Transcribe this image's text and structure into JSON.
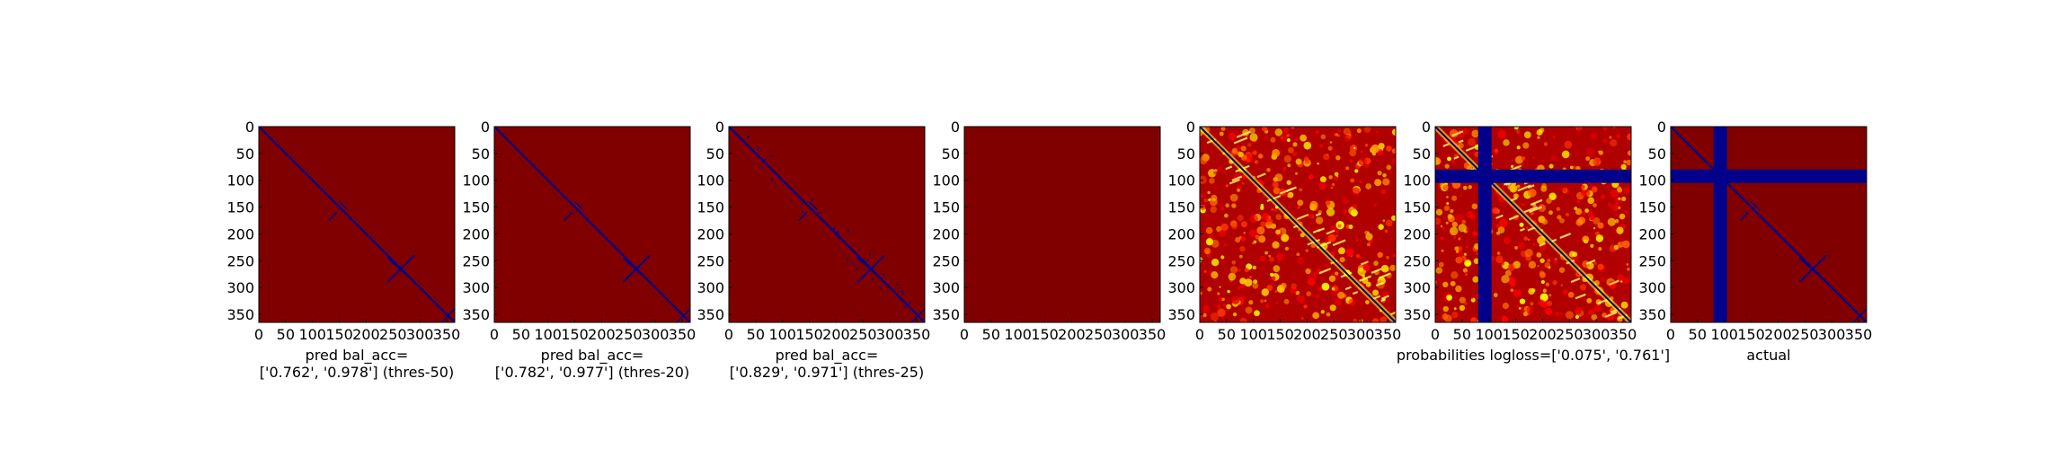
{
  "chart_data": [
    {
      "type": "heatmap",
      "colormap": "jet",
      "xlabel_lines": [
        "pred bal_acc=",
        "['0.762', '0.978'] (thres-50)"
      ],
      "x_ticks": [
        "0",
        "50",
        "100",
        "150",
        "200",
        "250",
        "300",
        "350"
      ],
      "y_ticks": [
        "0",
        "50",
        "100",
        "150",
        "200",
        "250",
        "300",
        "350"
      ],
      "xlim": [
        0,
        365
      ],
      "ylim": [
        365,
        0
      ],
      "matrix_size": 365,
      "dominant_value": 1,
      "structures": [
        "main-diagonal",
        "cross-at-265"
      ],
      "colors": {
        "background": "#800000",
        "contact": "#00008b"
      }
    },
    {
      "type": "heatmap",
      "colormap": "jet",
      "xlabel_lines": [
        "pred bal_acc=",
        "['0.782', '0.977'] (thres-20)"
      ],
      "x_ticks": [
        "0",
        "50",
        "100",
        "150",
        "200",
        "250",
        "300",
        "350"
      ],
      "y_ticks": [
        "0",
        "50",
        "100",
        "150",
        "200",
        "250",
        "300",
        "350"
      ],
      "xlim": [
        0,
        365
      ],
      "ylim": [
        365,
        0
      ],
      "matrix_size": 365,
      "dominant_value": 1,
      "structures": [
        "main-diagonal",
        "cross-at-265"
      ],
      "colors": {
        "background": "#800000",
        "contact": "#00008b"
      }
    },
    {
      "type": "heatmap",
      "colormap": "jet",
      "xlabel_lines": [
        "pred bal_acc=",
        "['0.829', '0.971'] (thres-25)"
      ],
      "x_ticks": [
        "0",
        "50",
        "100",
        "150",
        "200",
        "250",
        "300",
        "350"
      ],
      "y_ticks": [
        "0",
        "50",
        "100",
        "150",
        "200",
        "250",
        "300",
        "350"
      ],
      "xlim": [
        0,
        365
      ],
      "ylim": [
        365,
        0
      ],
      "matrix_size": 365,
      "dominant_value": 1,
      "structures": [
        "main-diagonal",
        "cross-at-265",
        "scattered-contacts"
      ],
      "colors": {
        "background": "#800000",
        "contact": "#00008b"
      }
    },
    {
      "type": "heatmap",
      "colormap": "jet",
      "xlabel_lines": [],
      "x_ticks": [
        "0",
        "50",
        "100",
        "150",
        "200",
        "250",
        "300",
        "350"
      ],
      "y_ticks": [
        "0",
        "50",
        "100",
        "150",
        "200",
        "250",
        "300",
        "350"
      ],
      "xlim": [
        0,
        365
      ],
      "ylim": [
        365,
        0
      ],
      "matrix_size": 365,
      "dominant_value": 1,
      "structures": [],
      "colors": {
        "background": "#800000"
      }
    },
    {
      "type": "heatmap",
      "colormap": "jet",
      "xlabel_lines": [],
      "x_ticks": [
        "0",
        "50",
        "100",
        "150",
        "200",
        "250",
        "300",
        "350"
      ],
      "y_ticks": [
        "0",
        "50",
        "100",
        "150",
        "200",
        "250",
        "300",
        "350"
      ],
      "xlim": [
        0,
        365
      ],
      "ylim": [
        365,
        0
      ],
      "matrix_size": 365,
      "structures": [
        "noisy-probabilities",
        "main-diagonal-low"
      ],
      "colors": {
        "background": "#b00000",
        "low": "#00008b",
        "mid": "#ffff00"
      }
    },
    {
      "type": "heatmap",
      "colormap": "jet",
      "xlabel_lines": [
        "probabilities logloss=['0.075', '0.761']"
      ],
      "x_ticks": [
        "0",
        "50",
        "100",
        "150",
        "200",
        "250",
        "300",
        "350"
      ],
      "y_ticks": [
        "0",
        "50",
        "100",
        "150",
        "200",
        "250",
        "300",
        "350"
      ],
      "xlim": [
        0,
        365
      ],
      "ylim": [
        365,
        0
      ],
      "matrix_size": 365,
      "masked_band": [
        80,
        105
      ],
      "structures": [
        "noisy-probabilities",
        "main-diagonal-low",
        "masked-band"
      ],
      "colors": {
        "background": "#b00000",
        "low": "#00008b",
        "mid": "#ffff00"
      }
    },
    {
      "type": "heatmap",
      "colormap": "jet",
      "xlabel_lines": [
        "actual"
      ],
      "x_ticks": [
        "0",
        "50",
        "100",
        "150",
        "200",
        "250",
        "300",
        "350"
      ],
      "y_ticks": [
        "0",
        "50",
        "100",
        "150",
        "200",
        "250",
        "300",
        "350"
      ],
      "xlim": [
        0,
        365
      ],
      "ylim": [
        365,
        0
      ],
      "matrix_size": 365,
      "masked_band": [
        80,
        105
      ],
      "dominant_value": 1,
      "structures": [
        "main-diagonal",
        "cross-at-265",
        "masked-band"
      ],
      "colors": {
        "background": "#800000",
        "contact": "#00008b"
      }
    }
  ]
}
